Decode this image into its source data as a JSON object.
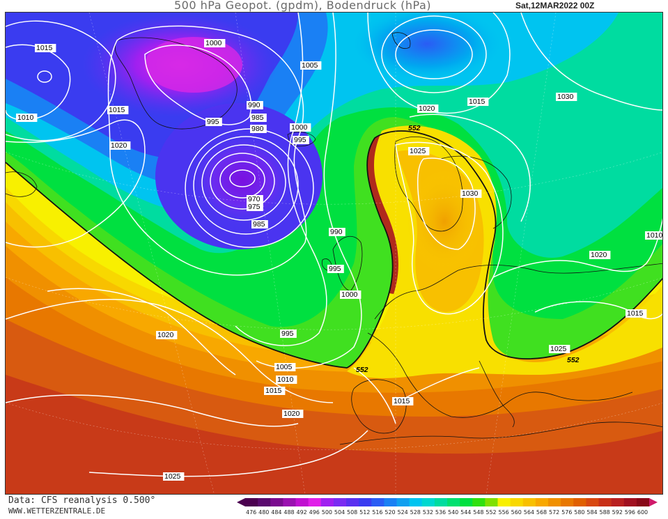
{
  "title": "500 hPa Geopot. (gpdm), Bodendruck (hPa)",
  "datetime": "Sat,12MAR2022 00Z",
  "footer": {
    "source": "Data: CFS reanalysis 0.500°",
    "website": "WWW.WETTERZENTRALE.DE"
  },
  "legend": {
    "unit": "gpdm",
    "values": [
      "476",
      "480",
      "484",
      "488",
      "492",
      "496",
      "500",
      "504",
      "508",
      "512",
      "516",
      "520",
      "524",
      "528",
      "532",
      "536",
      "540",
      "544",
      "548",
      "552",
      "556",
      "560",
      "564",
      "568",
      "572",
      "576",
      "580",
      "584",
      "588",
      "592",
      "596",
      "600"
    ],
    "colors": [
      "#4b0050",
      "#5a0a6e",
      "#7a0b8f",
      "#9a10b0",
      "#c010d0",
      "#e020e8",
      "#a020f0",
      "#7a2cf2",
      "#5a30f0",
      "#3a3cf0",
      "#2a5cf4",
      "#1a80f4",
      "#10a0f0",
      "#00c4f0",
      "#00d8d0",
      "#00dca0",
      "#00e070",
      "#00e040",
      "#30e010",
      "#80e000",
      "#f8f000",
      "#f8d800",
      "#f8c000",
      "#f8a800",
      "#f09000",
      "#e87800",
      "#e06000",
      "#d84810",
      "#c83018",
      "#b82020",
      "#a01020",
      "#880818"
    ],
    "reference_contour": "552"
  },
  "pressure_labels": [
    {
      "text": "1015"
    },
    {
      "text": "1000"
    },
    {
      "text": "1005"
    },
    {
      "text": "1010"
    },
    {
      "text": "1015"
    },
    {
      "text": "990"
    },
    {
      "text": "985"
    },
    {
      "text": "980"
    },
    {
      "text": "995"
    },
    {
      "text": "1000"
    },
    {
      "text": "995"
    },
    {
      "text": "1020"
    },
    {
      "text": "1015"
    },
    {
      "text": "1030"
    },
    {
      "text": "1020"
    },
    {
      "text": "1025"
    },
    {
      "text": "1030"
    },
    {
      "text": "970"
    },
    {
      "text": "975"
    },
    {
      "text": "985"
    },
    {
      "text": "990"
    },
    {
      "text": "1010"
    },
    {
      "text": "1020"
    },
    {
      "text": "995"
    },
    {
      "text": "1000"
    },
    {
      "text": "1015"
    },
    {
      "text": "995"
    },
    {
      "text": "1020"
    },
    {
      "text": "1025"
    },
    {
      "text": "1005"
    },
    {
      "text": "1010"
    },
    {
      "text": "1015"
    },
    {
      "text": "1015"
    },
    {
      "text": "1020"
    },
    {
      "text": "1025"
    },
    {
      "text": "552"
    },
    {
      "text": "552"
    },
    {
      "text": "552"
    }
  ]
}
